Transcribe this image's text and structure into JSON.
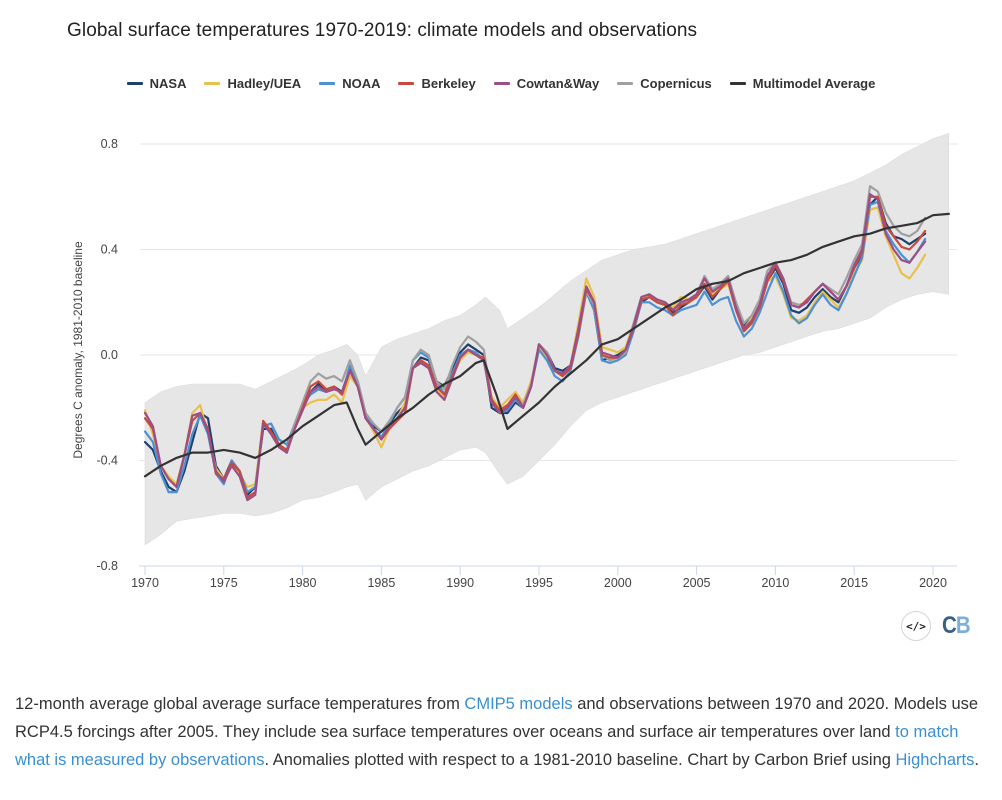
{
  "page": {
    "title": "Global surface temperatures 1970-2019: climate models and observations",
    "embed_icon": "code-embed-icon",
    "embed_label": "</>",
    "logo_c": "C",
    "logo_b": "B",
    "caption": {
      "part1": "12-month average global average surface temperatures from ",
      "link1": "CMIP5 models",
      "part2": " and observations between 1970 and 2020. Models use RCP4.5 forcings after 2005. They include sea surface temperatures over oceans and surface air temperatures over land ",
      "link2": "to match what is measured by observations",
      "part3": ". Anomalies plotted with respect to a 1981-2010 baseline. Chart by Carbon Brief using ",
      "link3": "Highcharts",
      "part4": "."
    }
  },
  "chart_data": {
    "type": "line",
    "title": "Global surface temperatures 1970-2019: climate models and observations",
    "xlabel": "",
    "ylabel": "Degrees C anomaly, 1981-2010 baseline",
    "xlim": [
      1970,
      2021.5
    ],
    "ylim": [
      -0.8,
      0.8
    ],
    "xticks": [
      1970,
      1975,
      1980,
      1985,
      1990,
      1995,
      2000,
      2005,
      2010,
      2015,
      2020
    ],
    "yticks": [
      0.8,
      0.4,
      0.0,
      -0.4,
      -0.8
    ],
    "ytick_labels": [
      "0.8",
      "0.4",
      "0.0",
      "-0.4",
      "-0.8"
    ],
    "grid": true,
    "legend_position": "top-center",
    "band": {
      "name": "Model range",
      "color": "#e6e6e6",
      "x": [
        1970,
        1971,
        1972,
        1973,
        1974,
        1975,
        1976,
        1977,
        1978,
        1979,
        1980,
        1981,
        1982,
        1982.8,
        1983.5,
        1984,
        1985,
        1986,
        1987,
        1988,
        1989,
        1990,
        1991,
        1991.6,
        1992.5,
        1993,
        1994,
        1995,
        1996,
        1997,
        1998,
        1999,
        2000,
        2001,
        2002,
        2003,
        2004,
        2005,
        2006,
        2007,
        2008,
        2009,
        2010,
        2011,
        2012,
        2013,
        2014,
        2015,
        2016,
        2017,
        2018,
        2019,
        2020,
        2021
      ],
      "upper": [
        -0.18,
        -0.14,
        -0.12,
        -0.11,
        -0.11,
        -0.11,
        -0.11,
        -0.13,
        -0.1,
        -0.07,
        -0.04,
        0.0,
        0.02,
        0.04,
        0.0,
        -0.08,
        0.03,
        0.06,
        0.08,
        0.1,
        0.13,
        0.15,
        0.19,
        0.22,
        0.17,
        0.1,
        0.14,
        0.18,
        0.23,
        0.28,
        0.32,
        0.36,
        0.38,
        0.4,
        0.41,
        0.42,
        0.44,
        0.46,
        0.48,
        0.5,
        0.52,
        0.54,
        0.56,
        0.58,
        0.6,
        0.62,
        0.64,
        0.66,
        0.69,
        0.72,
        0.76,
        0.79,
        0.82,
        0.84
      ],
      "lower": [
        -0.72,
        -0.68,
        -0.63,
        -0.62,
        -0.61,
        -0.6,
        -0.6,
        -0.61,
        -0.6,
        -0.58,
        -0.55,
        -0.54,
        -0.52,
        -0.5,
        -0.49,
        -0.55,
        -0.5,
        -0.47,
        -0.44,
        -0.42,
        -0.39,
        -0.36,
        -0.35,
        -0.37,
        -0.45,
        -0.49,
        -0.46,
        -0.4,
        -0.34,
        -0.27,
        -0.21,
        -0.18,
        -0.16,
        -0.14,
        -0.12,
        -0.1,
        -0.08,
        -0.06,
        -0.04,
        -0.02,
        0.0,
        0.01,
        0.03,
        0.05,
        0.07,
        0.09,
        0.1,
        0.12,
        0.14,
        0.18,
        0.21,
        0.23,
        0.24,
        0.23
      ]
    },
    "x": [
      1970,
      1970.5,
      1971,
      1971.5,
      1972,
      1972.5,
      1973,
      1973.5,
      1974,
      1974.5,
      1975,
      1975.5,
      1976,
      1976.5,
      1977,
      1977.5,
      1978,
      1978.5,
      1979,
      1979.5,
      1980,
      1980.5,
      1981,
      1981.5,
      1982,
      1982.5,
      1983,
      1983.5,
      1984,
      1984.5,
      1985,
      1985.5,
      1986,
      1986.5,
      1987,
      1987.5,
      1988,
      1988.5,
      1989,
      1989.5,
      1990,
      1990.5,
      1991,
      1991.5,
      1992,
      1992.5,
      1993,
      1993.5,
      1994,
      1994.5,
      1995,
      1995.5,
      1996,
      1996.5,
      1997,
      1997.5,
      1998,
      1998.5,
      1999,
      1999.5,
      2000,
      2000.5,
      2001,
      2001.5,
      2002,
      2002.5,
      2003,
      2003.5,
      2004,
      2004.5,
      2005,
      2005.5,
      2006,
      2006.5,
      2007,
      2007.5,
      2008,
      2008.5,
      2009,
      2009.5,
      2010,
      2010.5,
      2011,
      2011.5,
      2012,
      2012.5,
      2013,
      2013.5,
      2014,
      2014.5,
      2015,
      2015.5,
      2016,
      2016.5,
      2017,
      2017.5,
      2018,
      2018.5,
      2019,
      2019.5
    ],
    "series": [
      {
        "name": "NASA",
        "color": "#1f3f6e",
        "values": [
          -0.33,
          -0.36,
          -0.44,
          -0.5,
          -0.52,
          -0.44,
          -0.33,
          -0.22,
          -0.24,
          -0.42,
          -0.47,
          -0.4,
          -0.44,
          -0.53,
          -0.5,
          -0.28,
          -0.28,
          -0.34,
          -0.37,
          -0.27,
          -0.2,
          -0.14,
          -0.11,
          -0.14,
          -0.12,
          -0.14,
          -0.05,
          -0.12,
          -0.23,
          -0.27,
          -0.29,
          -0.26,
          -0.22,
          -0.19,
          -0.05,
          -0.01,
          -0.02,
          -0.1,
          -0.12,
          -0.05,
          0.01,
          0.04,
          0.02,
          0.0,
          -0.2,
          -0.22,
          -0.22,
          -0.18,
          -0.2,
          -0.11,
          0.04,
          0.01,
          -0.05,
          -0.06,
          -0.04,
          0.08,
          0.24,
          0.17,
          -0.02,
          -0.01,
          0.0,
          0.02,
          0.1,
          0.2,
          0.22,
          0.2,
          0.19,
          0.16,
          0.18,
          0.2,
          0.22,
          0.26,
          0.21,
          0.25,
          0.28,
          0.19,
          0.11,
          0.14,
          0.19,
          0.28,
          0.33,
          0.27,
          0.17,
          0.16,
          0.18,
          0.22,
          0.25,
          0.22,
          0.2,
          0.26,
          0.33,
          0.38,
          0.57,
          0.6,
          0.5,
          0.45,
          0.44,
          0.42,
          0.44,
          0.46
        ]
      },
      {
        "name": "Hadley/UEA",
        "color": "#e8c04a",
        "values": [
          -0.21,
          -0.3,
          -0.42,
          -0.46,
          -0.49,
          -0.38,
          -0.22,
          -0.19,
          -0.3,
          -0.43,
          -0.47,
          -0.42,
          -0.45,
          -0.5,
          -0.49,
          -0.25,
          -0.3,
          -0.35,
          -0.36,
          -0.28,
          -0.2,
          -0.18,
          -0.17,
          -0.17,
          -0.15,
          -0.18,
          -0.08,
          -0.12,
          -0.23,
          -0.29,
          -0.35,
          -0.28,
          -0.24,
          -0.18,
          -0.05,
          -0.02,
          -0.04,
          -0.13,
          -0.16,
          -0.08,
          -0.02,
          0.01,
          0.0,
          -0.02,
          -0.16,
          -0.2,
          -0.17,
          -0.14,
          -0.18,
          -0.1,
          0.03,
          -0.01,
          -0.06,
          -0.08,
          -0.04,
          0.12,
          0.29,
          0.22,
          0.03,
          0.02,
          0.01,
          0.03,
          0.12,
          0.21,
          0.22,
          0.21,
          0.2,
          0.18,
          0.22,
          0.21,
          0.23,
          0.27,
          0.23,
          0.25,
          0.27,
          0.17,
          0.1,
          0.14,
          0.2,
          0.28,
          0.3,
          0.23,
          0.14,
          0.13,
          0.15,
          0.2,
          0.24,
          0.21,
          0.18,
          0.23,
          0.31,
          0.36,
          0.55,
          0.56,
          0.45,
          0.38,
          0.31,
          0.29,
          0.33,
          0.38
        ]
      },
      {
        "name": "NOAA",
        "color": "#4c92d3",
        "values": [
          -0.29,
          -0.33,
          -0.45,
          -0.52,
          -0.52,
          -0.42,
          -0.3,
          -0.23,
          -0.3,
          -0.45,
          -0.49,
          -0.4,
          -0.44,
          -0.52,
          -0.5,
          -0.27,
          -0.26,
          -0.32,
          -0.34,
          -0.26,
          -0.19,
          -0.15,
          -0.13,
          -0.14,
          -0.12,
          -0.15,
          -0.04,
          -0.1,
          -0.22,
          -0.28,
          -0.31,
          -0.26,
          -0.2,
          -0.16,
          -0.02,
          0.01,
          -0.01,
          -0.1,
          -0.15,
          -0.07,
          0.0,
          0.02,
          0.01,
          -0.02,
          -0.18,
          -0.22,
          -0.21,
          -0.17,
          -0.2,
          -0.12,
          0.02,
          -0.02,
          -0.08,
          -0.1,
          -0.06,
          0.07,
          0.24,
          0.17,
          -0.02,
          -0.03,
          -0.02,
          0.0,
          0.09,
          0.2,
          0.2,
          0.18,
          0.17,
          0.15,
          0.17,
          0.18,
          0.19,
          0.24,
          0.19,
          0.21,
          0.22,
          0.13,
          0.07,
          0.1,
          0.16,
          0.24,
          0.31,
          0.24,
          0.15,
          0.12,
          0.14,
          0.19,
          0.23,
          0.19,
          0.17,
          0.23,
          0.3,
          0.37,
          0.57,
          0.58,
          0.47,
          0.42,
          0.38,
          0.35,
          0.39,
          0.44
        ]
      },
      {
        "name": "Berkeley",
        "color": "#c94a3a",
        "values": [
          -0.24,
          -0.28,
          -0.42,
          -0.47,
          -0.5,
          -0.38,
          -0.25,
          -0.22,
          -0.28,
          -0.45,
          -0.47,
          -0.41,
          -0.44,
          -0.54,
          -0.52,
          -0.25,
          -0.29,
          -0.34,
          -0.36,
          -0.28,
          -0.2,
          -0.12,
          -0.1,
          -0.13,
          -0.12,
          -0.15,
          -0.06,
          -0.12,
          -0.24,
          -0.28,
          -0.32,
          -0.28,
          -0.25,
          -0.22,
          -0.05,
          -0.02,
          -0.04,
          -0.12,
          -0.15,
          -0.08,
          -0.01,
          0.02,
          0.0,
          -0.01,
          -0.17,
          -0.21,
          -0.19,
          -0.15,
          -0.2,
          -0.12,
          0.04,
          0.0,
          -0.06,
          -0.08,
          -0.05,
          0.08,
          0.25,
          0.2,
          0.0,
          -0.01,
          -0.01,
          0.02,
          0.1,
          0.21,
          0.22,
          0.2,
          0.19,
          0.15,
          0.19,
          0.2,
          0.22,
          0.27,
          0.22,
          0.25,
          0.28,
          0.17,
          0.09,
          0.12,
          0.18,
          0.28,
          0.34,
          0.28,
          0.19,
          0.18,
          0.21,
          0.24,
          0.27,
          0.24,
          0.21,
          0.26,
          0.33,
          0.39,
          0.6,
          0.6,
          0.49,
          0.45,
          0.41,
          0.4,
          0.43,
          0.47
        ]
      },
      {
        "name": "Cowtan&Way",
        "color": "#9c4f86",
        "values": [
          -0.22,
          -0.27,
          -0.42,
          -0.47,
          -0.5,
          -0.38,
          -0.23,
          -0.22,
          -0.29,
          -0.44,
          -0.48,
          -0.42,
          -0.46,
          -0.55,
          -0.53,
          -0.26,
          -0.3,
          -0.35,
          -0.37,
          -0.28,
          -0.21,
          -0.14,
          -0.12,
          -0.14,
          -0.13,
          -0.14,
          -0.06,
          -0.12,
          -0.24,
          -0.28,
          -0.32,
          -0.27,
          -0.24,
          -0.2,
          -0.05,
          -0.03,
          -0.05,
          -0.14,
          -0.17,
          -0.09,
          -0.01,
          0.02,
          0.0,
          -0.02,
          -0.18,
          -0.22,
          -0.2,
          -0.16,
          -0.2,
          -0.12,
          0.04,
          0.0,
          -0.06,
          -0.07,
          -0.04,
          0.1,
          0.26,
          0.2,
          0.01,
          0.0,
          -0.01,
          0.02,
          0.11,
          0.22,
          0.23,
          0.21,
          0.2,
          0.17,
          0.2,
          0.21,
          0.23,
          0.29,
          0.24,
          0.26,
          0.29,
          0.18,
          0.1,
          0.13,
          0.19,
          0.3,
          0.35,
          0.29,
          0.19,
          0.18,
          0.2,
          0.24,
          0.27,
          0.24,
          0.21,
          0.26,
          0.34,
          0.4,
          0.61,
          0.59,
          0.46,
          0.4,
          0.36,
          0.35,
          0.39,
          0.43
        ]
      },
      {
        "name": "Copernicus",
        "color": "#a0a0a0",
        "values": [
          null,
          null,
          null,
          null,
          null,
          null,
          null,
          null,
          null,
          null,
          null,
          null,
          null,
          null,
          null,
          null,
          null,
          null,
          -0.36,
          -0.26,
          -0.18,
          -0.1,
          -0.07,
          -0.09,
          -0.08,
          -0.1,
          -0.02,
          -0.1,
          -0.22,
          -0.26,
          -0.29,
          -0.25,
          -0.2,
          -0.16,
          -0.02,
          0.02,
          0.0,
          -0.1,
          -0.13,
          -0.04,
          0.03,
          0.07,
          0.05,
          0.02,
          -0.17,
          -0.21,
          -0.2,
          -0.15,
          -0.19,
          -0.11,
          0.04,
          0.01,
          -0.06,
          -0.08,
          -0.05,
          0.08,
          0.24,
          0.19,
          0.0,
          -0.02,
          -0.01,
          0.01,
          0.12,
          0.22,
          0.23,
          0.21,
          0.2,
          0.17,
          0.2,
          0.21,
          0.23,
          0.3,
          0.25,
          0.27,
          0.3,
          0.2,
          0.12,
          0.15,
          0.21,
          0.32,
          0.35,
          0.29,
          0.2,
          0.19,
          0.2,
          0.24,
          0.27,
          0.25,
          0.23,
          0.29,
          0.36,
          0.42,
          0.64,
          0.62,
          0.54,
          0.49,
          0.46,
          0.45,
          0.47,
          0.52
        ]
      },
      {
        "name": "Multimodel Average",
        "color": "#333333",
        "x": [
          1970,
          1971,
          1972,
          1973,
          1974,
          1975,
          1976,
          1977,
          1978,
          1979,
          1980,
          1981,
          1982,
          1982.8,
          1983.5,
          1984,
          1985,
          1986,
          1987,
          1988,
          1989,
          1990,
          1991,
          1991.5,
          1992.3,
          1993,
          1994,
          1995,
          1996,
          1997,
          1998,
          1999,
          2000,
          2001,
          2002,
          2003,
          2004,
          2005,
          2006,
          2007,
          2008,
          2009,
          2010,
          2011,
          2012,
          2013,
          2014,
          2015,
          2016,
          2017,
          2018,
          2019,
          2020,
          2021
        ],
        "values": [
          -0.46,
          -0.42,
          -0.39,
          -0.37,
          -0.37,
          -0.36,
          -0.37,
          -0.39,
          -0.36,
          -0.32,
          -0.27,
          -0.23,
          -0.19,
          -0.18,
          -0.28,
          -0.34,
          -0.29,
          -0.24,
          -0.2,
          -0.15,
          -0.11,
          -0.08,
          -0.03,
          -0.02,
          -0.15,
          -0.28,
          -0.23,
          -0.18,
          -0.12,
          -0.07,
          -0.02,
          0.04,
          0.06,
          0.1,
          0.14,
          0.18,
          0.21,
          0.25,
          0.27,
          0.28,
          0.31,
          0.33,
          0.35,
          0.36,
          0.38,
          0.41,
          0.43,
          0.45,
          0.46,
          0.48,
          0.49,
          0.5,
          0.53,
          0.535
        ]
      }
    ]
  }
}
